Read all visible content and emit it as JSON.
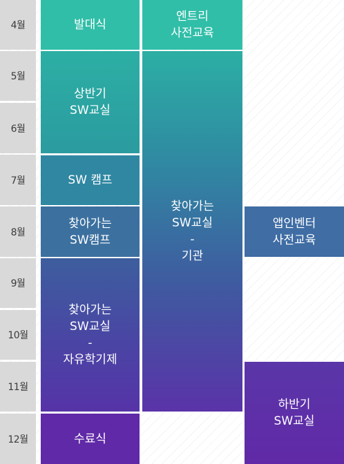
{
  "months": [
    "4월",
    "5월",
    "6월",
    "7월",
    "8월",
    "9월",
    "10월",
    "11월",
    "12월"
  ],
  "programs": {
    "baldae": {
      "lines": [
        "발대식"
      ]
    },
    "entry": {
      "lines": [
        "엔트리",
        "사전교육"
      ]
    },
    "sangban": {
      "lines": [
        "상반기",
        "SW교실"
      ]
    },
    "swcamp": {
      "lines": [
        "SW 캠프"
      ]
    },
    "chaja_camp": {
      "lines": [
        "찾아가는",
        "SW캠프"
      ]
    },
    "chaja_gigwan": {
      "lines": [
        "찾아가는",
        "SW교실",
        "-",
        "기관"
      ]
    },
    "appinventor": {
      "lines": [
        "앱인벤터",
        "사전교육"
      ]
    },
    "chaja_free": {
      "lines": [
        "찾아가는",
        "SW교실",
        "-",
        "자유학기제"
      ]
    },
    "haban": {
      "lines": [
        "하반기",
        "SW교실"
      ]
    },
    "suryo": {
      "lines": [
        "수료식"
      ]
    }
  },
  "colors": {
    "month_bg": "#d9d9d9",
    "teal": "#30bea8",
    "blue": "#3c709f",
    "purple": "#6029a7"
  }
}
